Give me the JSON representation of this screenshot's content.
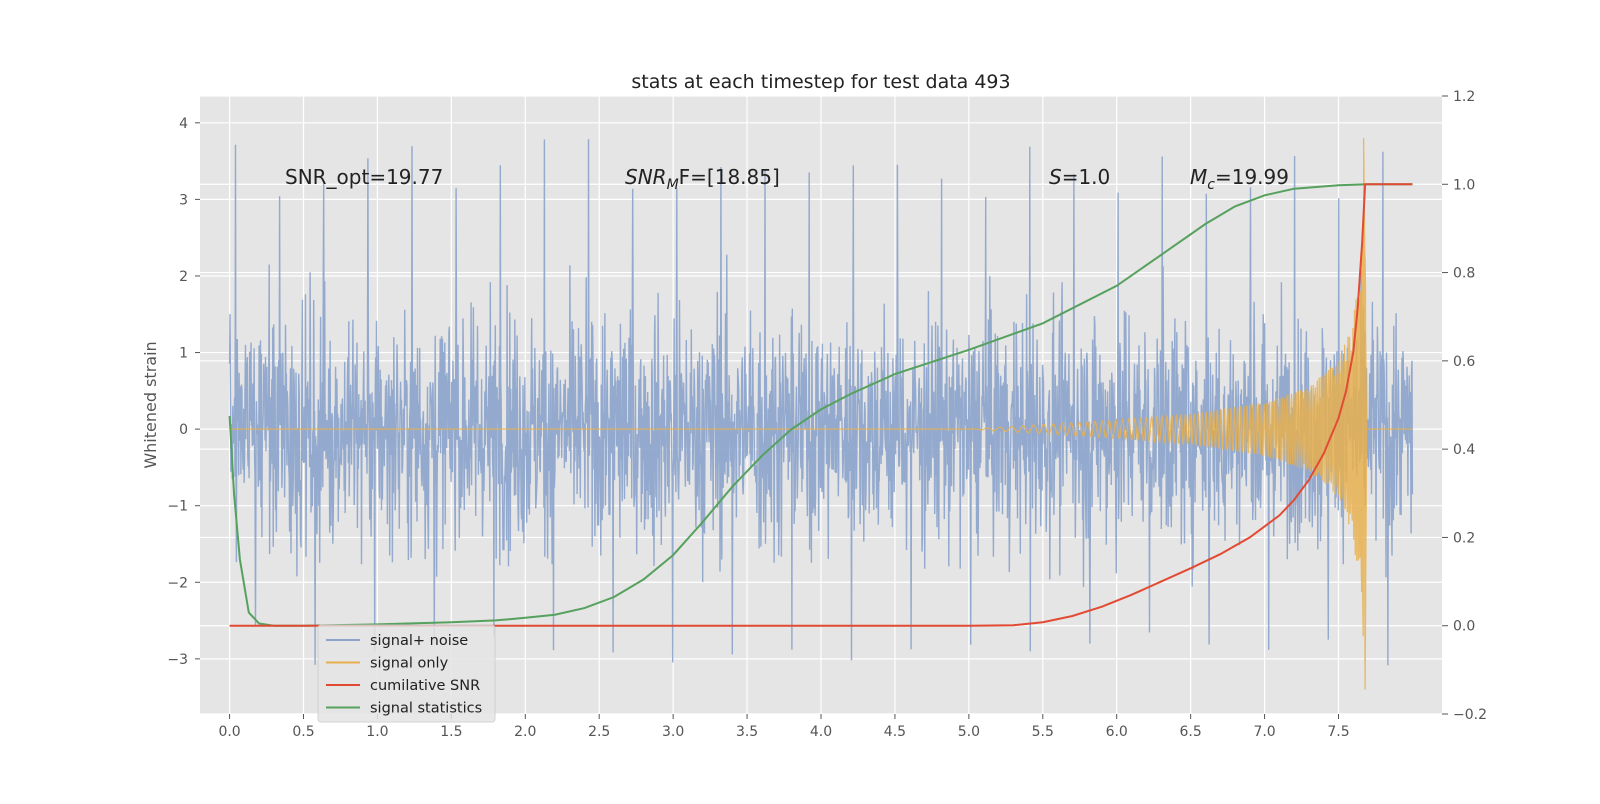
{
  "chart_data": {
    "type": "line",
    "title": "stats at each timestep for test data 493",
    "ylabel": "Whitened strain",
    "xlim": [
      -0.2,
      8.2
    ],
    "ylim": [
      -3.72,
      4.35
    ],
    "y2lim": [
      -0.2,
      1.2
    ],
    "x_ticks": [
      0.0,
      0.5,
      1.0,
      1.5,
      2.0,
      2.5,
      3.0,
      3.5,
      4.0,
      4.5,
      5.0,
      5.5,
      6.0,
      6.5,
      7.0,
      7.5
    ],
    "x_tick_labels": [
      "0.0",
      "0.5",
      "1.0",
      "1.5",
      "2.0",
      "2.5",
      "3.0",
      "3.5",
      "4.0",
      "4.5",
      "5.0",
      "5.5",
      "6.0",
      "6.5",
      "7.0",
      "7.5"
    ],
    "y_ticks": [
      -3,
      -2,
      -1,
      0,
      1,
      2,
      3,
      4
    ],
    "y_tick_labels": [
      "−3",
      "−2",
      "−1",
      "0",
      "1",
      "2",
      "3",
      "4"
    ],
    "y2_ticks": [
      -0.2,
      0.0,
      0.2,
      0.4,
      0.6,
      0.8,
      1.0,
      1.2
    ],
    "y2_tick_labels": [
      "−0.2",
      "0.0",
      "0.2",
      "0.4",
      "0.6",
      "0.8",
      "1.0",
      "1.2"
    ],
    "grid": true,
    "legend_position": "lower-left",
    "annotations": {
      "snr_opt": "SNR_opt=19.77",
      "snr_mf_main": "SNR",
      "snr_mf_sub": "M",
      "snr_mf_rest": "F=[18.85]",
      "s_var": "S",
      "s_rest": "=1.0",
      "mc_var": "M",
      "mc_sub": "c",
      "mc_rest": "=19.99"
    },
    "series": [
      {
        "name": "signal+ noise",
        "color": "#8ea5cb",
        "axis": "left",
        "description_values": {
          "x_range": [
            0.0,
            8.0
          ],
          "amplitude_std": 1.05,
          "peak_max": 4.0,
          "peak_min": -3.2
        }
      },
      {
        "name": "signal only",
        "color": "#e8b04f",
        "axis": "left",
        "points": [
          [
            0.0,
            0.0
          ],
          [
            5.0,
            0.0
          ],
          [
            5.5,
            0.06
          ],
          [
            6.0,
            0.12
          ],
          [
            6.5,
            0.2
          ],
          [
            7.0,
            0.35
          ],
          [
            7.3,
            0.55
          ],
          [
            7.5,
            0.9
          ],
          [
            7.6,
            1.4
          ],
          [
            7.65,
            2.4
          ],
          [
            7.67,
            3.8
          ],
          [
            7.68,
            -3.4
          ],
          [
            7.69,
            0.0
          ],
          [
            8.0,
            0.0
          ]
        ]
      },
      {
        "name": "cumilative SNR",
        "color": "#e24a33",
        "axis": "right",
        "x": [
          0.0,
          1.0,
          2.0,
          3.0,
          4.0,
          5.0,
          5.3,
          5.5,
          5.7,
          5.9,
          6.1,
          6.3,
          6.5,
          6.7,
          6.9,
          7.1,
          7.2,
          7.3,
          7.4,
          7.5,
          7.55,
          7.6,
          7.63,
          7.66,
          7.68,
          8.0
        ],
        "y": [
          0.0,
          0.0,
          0.0,
          0.0,
          0.0,
          0.0,
          0.001,
          0.008,
          0.022,
          0.043,
          0.07,
          0.1,
          0.13,
          0.162,
          0.2,
          0.25,
          0.285,
          0.33,
          0.39,
          0.47,
          0.53,
          0.62,
          0.72,
          0.87,
          1.0,
          1.0
        ]
      },
      {
        "name": "signal statistics",
        "color": "#55a15d",
        "axis": "right",
        "x": [
          0.0,
          0.03,
          0.07,
          0.13,
          0.2,
          0.3,
          0.5,
          1.0,
          1.5,
          1.8,
          2.0,
          2.2,
          2.4,
          2.6,
          2.8,
          3.0,
          3.2,
          3.4,
          3.6,
          3.8,
          4.0,
          4.2,
          4.5,
          5.0,
          5.5,
          6.0,
          6.3,
          6.6,
          6.8,
          7.0,
          7.2,
          7.5,
          7.7,
          8.0
        ],
        "y": [
          0.475,
          0.3,
          0.15,
          0.03,
          0.005,
          0.0,
          0.0,
          0.003,
          0.008,
          0.012,
          0.018,
          0.025,
          0.04,
          0.065,
          0.105,
          0.16,
          0.235,
          0.315,
          0.385,
          0.445,
          0.49,
          0.525,
          0.57,
          0.625,
          0.685,
          0.77,
          0.84,
          0.91,
          0.95,
          0.975,
          0.99,
          0.998,
          1.0,
          1.0
        ]
      }
    ]
  }
}
